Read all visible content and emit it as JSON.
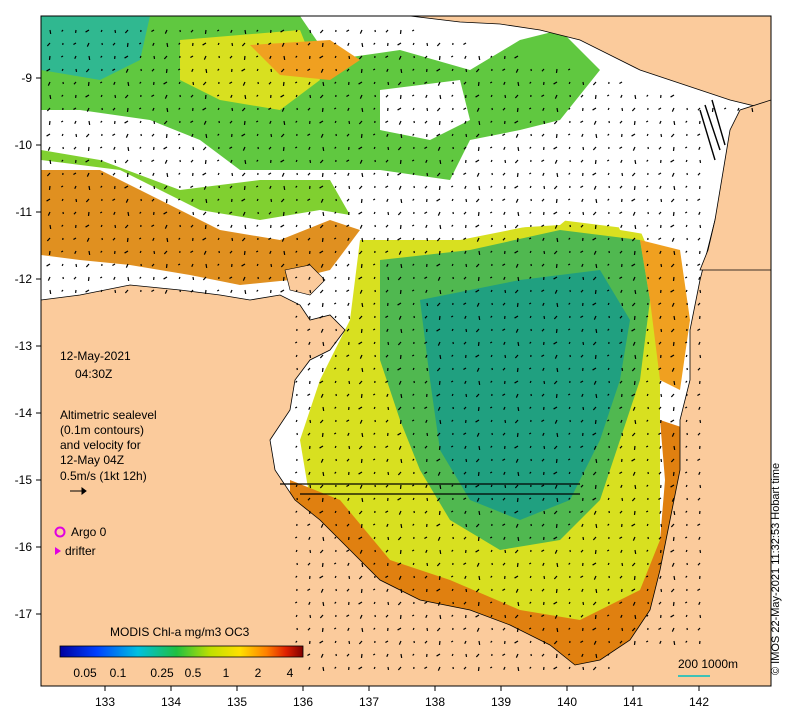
{
  "map": {
    "date_label": "12-May-2021",
    "time_label": "04:30Z",
    "altimetry_lines": [
      "Altimetric sealevel",
      "(0.1m contours)",
      "and velocity for",
      "12-May 04Z",
      "0.5m/s (1kt 12h)"
    ],
    "legend_argo": "Argo 0",
    "legend_drifter": "drifter",
    "colorbar_title": "MODIS Chl-a mg/m3 OC3",
    "colorbar_ticks": [
      "0.05",
      "0.1",
      "0.25",
      "0.5",
      "1",
      "2",
      "4"
    ],
    "depth_label": "200 1000m",
    "credit": "© IMOS 22-May-2021 11:32:53 Hobart time",
    "lat_ticks": [
      "-9",
      "-10",
      "-11",
      "-12",
      "-13",
      "-14",
      "-15",
      "-16",
      "-17"
    ],
    "lon_ticks": [
      "133",
      "134",
      "135",
      "136",
      "137",
      "138",
      "139",
      "140",
      "141",
      "142"
    ],
    "colors": {
      "land": "#fbcb9c",
      "argo_marker": "#e000e0",
      "drifter_marker": "#e000e0",
      "depth_contour": "#00c0c0"
    }
  }
}
